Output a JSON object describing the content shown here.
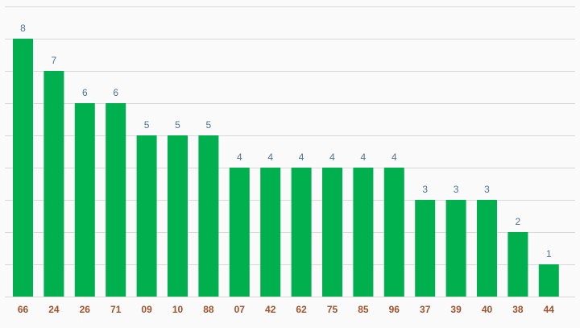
{
  "chart_data": {
    "type": "bar",
    "categories": [
      "66",
      "24",
      "26",
      "71",
      "09",
      "10",
      "88",
      "07",
      "42",
      "62",
      "75",
      "85",
      "96",
      "37",
      "39",
      "40",
      "38",
      "44"
    ],
    "values": [
      8,
      7,
      6,
      6,
      5,
      5,
      5,
      4,
      4,
      4,
      4,
      4,
      4,
      3,
      3,
      3,
      2,
      1
    ],
    "color": "#00b04f",
    "ylim": [
      0,
      9
    ],
    "yticks": [
      0,
      1,
      2,
      3,
      4,
      5,
      6,
      7,
      8,
      9
    ],
    "grid": true
  }
}
